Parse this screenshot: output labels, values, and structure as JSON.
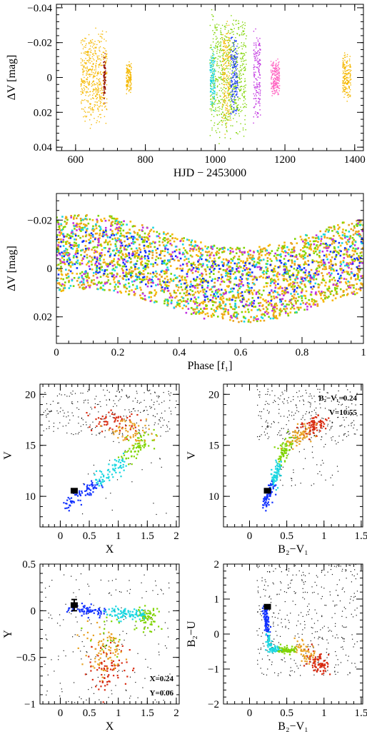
{
  "palette": [
    "#f5b800",
    "#7fd400",
    "#e8a020",
    "#19d6e0",
    "#1030ff",
    "#c030e0",
    "#ff60c0",
    "#d82a10",
    "#e85a10"
  ],
  "chart_data": [
    {
      "id": "lightcurve",
      "type": "scatter",
      "xlabel": "HJD − 2453000",
      "ylabel": "ΔV [mag]",
      "xlim": [
        545,
        1425
      ],
      "ylim": [
        0.042,
        -0.042
      ],
      "xticks": [
        600,
        800,
        1000,
        1200,
        1400
      ],
      "yticks": [
        -0.04,
        -0.02,
        0,
        0.02,
        0.04
      ],
      "yticklabels": [
        "−0.04",
        "−0.02",
        "0",
        "0.02",
        "0.04"
      ],
      "series": [
        {
          "color": "#f5b800",
          "x_range": [
            615,
            690
          ],
          "amplitude": 0.03
        },
        {
          "color": "#8b0000",
          "x_range": [
            680,
            686
          ],
          "amplitude": 0.015
        },
        {
          "color": "#f5b800",
          "x_range": [
            745,
            760
          ],
          "amplitude": 0.01
        },
        {
          "color": "#7fd400",
          "x_range": [
            985,
            1090
          ],
          "amplitude": 0.04
        },
        {
          "color": "#19d6e0",
          "x_range": [
            985,
            1000
          ],
          "amplitude": 0.02
        },
        {
          "color": "#f5b800",
          "x_range": [
            1020,
            1045
          ],
          "amplitude": 0.035
        },
        {
          "color": "#1030ff",
          "x_range": [
            1045,
            1065
          ],
          "amplitude": 0.025
        },
        {
          "color": "#c030e0",
          "x_range": [
            1110,
            1130
          ],
          "amplitude": 0.03
        },
        {
          "color": "#ff60c0",
          "x_range": [
            1160,
            1185
          ],
          "amplitude": 0.012
        },
        {
          "color": "#f5b800",
          "x_range": [
            1365,
            1390
          ],
          "amplitude": 0.015
        }
      ]
    },
    {
      "id": "phased",
      "type": "scatter",
      "xlabel": "Phase [f₁]",
      "ylabel": "ΔV [mag]",
      "xlim": [
        0,
        1
      ],
      "ylim": [
        0.031,
        -0.031
      ],
      "xticks": [
        0,
        0.2,
        0.4,
        0.6,
        0.8,
        1
      ],
      "xticklabels": [
        "0",
        "0.2",
        "0.4",
        "0.6",
        "0.8",
        "1"
      ],
      "yticks": [
        -0.02,
        0,
        0.02
      ],
      "yticklabels": [
        "−0.02",
        "0",
        "0.02"
      ],
      "signal": {
        "amplitude": 0.007,
        "phase_of_minimum": 0.6,
        "scatter": 0.012
      },
      "series_colors": [
        "#f5b800",
        "#7fd400",
        "#e8a020",
        "#1030ff",
        "#c030e0",
        "#19d6e0"
      ]
    },
    {
      "id": "cmd-x",
      "type": "scatter",
      "xlabel": "X",
      "ylabel": "V",
      "xlim": [
        -0.35,
        2.05
      ],
      "ylim": [
        7,
        21
      ],
      "xticks": [
        0,
        0.5,
        1,
        1.5,
        2
      ],
      "xticklabels": [
        "0",
        "0.5",
        "1",
        "1.5",
        "2"
      ],
      "yticks": [
        10,
        15,
        20
      ],
      "target": {
        "x": 0.24,
        "y": 10.55
      }
    },
    {
      "id": "cmd-bv",
      "type": "scatter",
      "xlabel": "B₂−V₁",
      "ylabel": "V",
      "xlim": [
        -0.35,
        1.52
      ],
      "ylim": [
        7,
        21
      ],
      "xticks": [
        0,
        0.5,
        1,
        1.5
      ],
      "xticklabels": [
        "0",
        "0.5",
        "1",
        "1.5"
      ],
      "yticks": [
        10,
        15,
        20
      ],
      "target": {
        "x": 0.24,
        "y": 10.55
      },
      "annotations": [
        "B₂−V₁=0.24",
        "V=10.55"
      ]
    },
    {
      "id": "xy",
      "type": "scatter",
      "xlabel": "X",
      "ylabel": "Y",
      "xlim": [
        -0.35,
        2.05
      ],
      "ylim": [
        -1,
        0.5
      ],
      "xticks": [
        0,
        0.5,
        1,
        1.5,
        2
      ],
      "xticklabels": [
        "0",
        "0.5",
        "1",
        "1.5",
        "2"
      ],
      "yticks": [
        -1,
        -0.5,
        0,
        0.5
      ],
      "yticklabels": [
        "−1",
        "−0.5",
        "0",
        "0.5"
      ],
      "target": {
        "x": 0.24,
        "y": 0.06
      },
      "annotations": [
        "X=0.24",
        "Y=0.06"
      ]
    },
    {
      "id": "bu",
      "type": "scatter",
      "xlabel": "B₂−V₁",
      "ylabel": "B₂−U",
      "xlim": [
        -0.35,
        1.52
      ],
      "ylim": [
        -2,
        2
      ],
      "xticks": [
        0,
        0.5,
        1,
        1.5
      ],
      "xticklabels": [
        "0",
        "0.5",
        "1",
        "1.5"
      ],
      "yticks": [
        -2,
        -1,
        0,
        1,
        2
      ],
      "yticklabels": [
        "−2",
        "−1",
        "0",
        "1",
        "2"
      ],
      "target": {
        "x": 0.24,
        "y": 0.78
      }
    }
  ]
}
